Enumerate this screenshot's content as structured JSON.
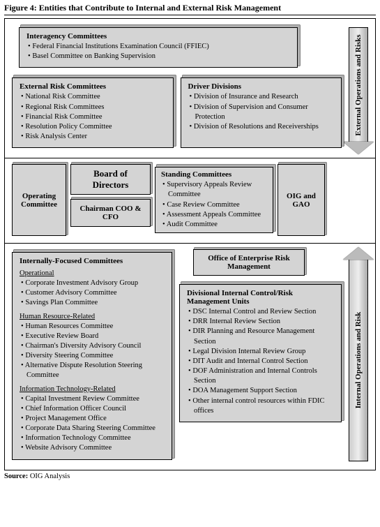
{
  "figure_title": "Figure 4: Entities that Contribute to Internal and External Risk Management",
  "source_label": "Source:",
  "source_text": "OIG Analysis",
  "colors": {
    "box_fill": "#d4d4d4",
    "box_shadow": "#b0b0b0",
    "border": "#000000",
    "bg": "#ffffff"
  },
  "section_top": {
    "arrow_label": "External Operations and Risks",
    "arrow_direction": "down",
    "interagency": {
      "title": "Interagency Committees",
      "items": [
        "Federal Financial Institutions Examination Council (FFIEC)",
        "Basel Committee on Banking Supervision"
      ]
    },
    "external_risk": {
      "title": "External Risk Committees",
      "items": [
        "National Risk Committee",
        "Regional Risk Committees",
        "Financial Risk Committee",
        "Resolution Policy Committee",
        "Risk Analysis Center"
      ]
    },
    "driver": {
      "title": "Driver Divisions",
      "items": [
        "Division of Insurance and Research",
        "Division of Supervision and Consumer Protection",
        "Division of Resolutions and Receiverships"
      ]
    }
  },
  "section_mid": {
    "operating": "Operating Committee",
    "board": "Board of Directors",
    "chairman": "Chairman COO & CFO",
    "standing": {
      "title": "Standing Committees",
      "items": [
        "Supervisory Appeals Review Committee",
        "Case Review Committee",
        "Assessment Appeals Committee",
        "Audit Committee"
      ]
    },
    "oig_gao": "OIG and GAO"
  },
  "section_bot": {
    "arrow_label": "Internal Operations and Risk",
    "arrow_direction": "up",
    "internal": {
      "title": "Internally-Focused Committees",
      "groups": [
        {
          "heading": "Operational",
          "items": [
            "Corporate Investment Advisory Group",
            "Customer Advisory Committee",
            "Savings Plan Committee"
          ]
        },
        {
          "heading": "Human Resource-Related",
          "items": [
            "Human Resources Committee",
            "Executive Review Board",
            "Chairman's Diversity Advisory Council",
            "Diversity Steering Committee",
            "Alternative Dispute Resolution Steering Committee"
          ]
        },
        {
          "heading": "Information Technology-Related",
          "items": [
            "Capital Investment Review Committee",
            "Chief Information Officer Council",
            "Project Management Office",
            "Corporate Data Sharing Steering Committee",
            "Information Technology Committee",
            "Website Advisory Committee"
          ]
        }
      ]
    },
    "office_erm": "Office of Enterprise Risk Management",
    "divisional": {
      "title": "Divisional Internal Control/Risk Management Units",
      "items": [
        "DSC Internal Control and Review Section",
        "DRR Internal Review Section",
        "DIR Planning and Resource Management Section",
        "Legal Division Internal Review Group",
        "DIT Audit and Internal Control Section",
        "DOF Administration and Internal Controls Section",
        "DOA Management Support Section",
        "Other internal control resources within FDIC offices"
      ]
    }
  }
}
